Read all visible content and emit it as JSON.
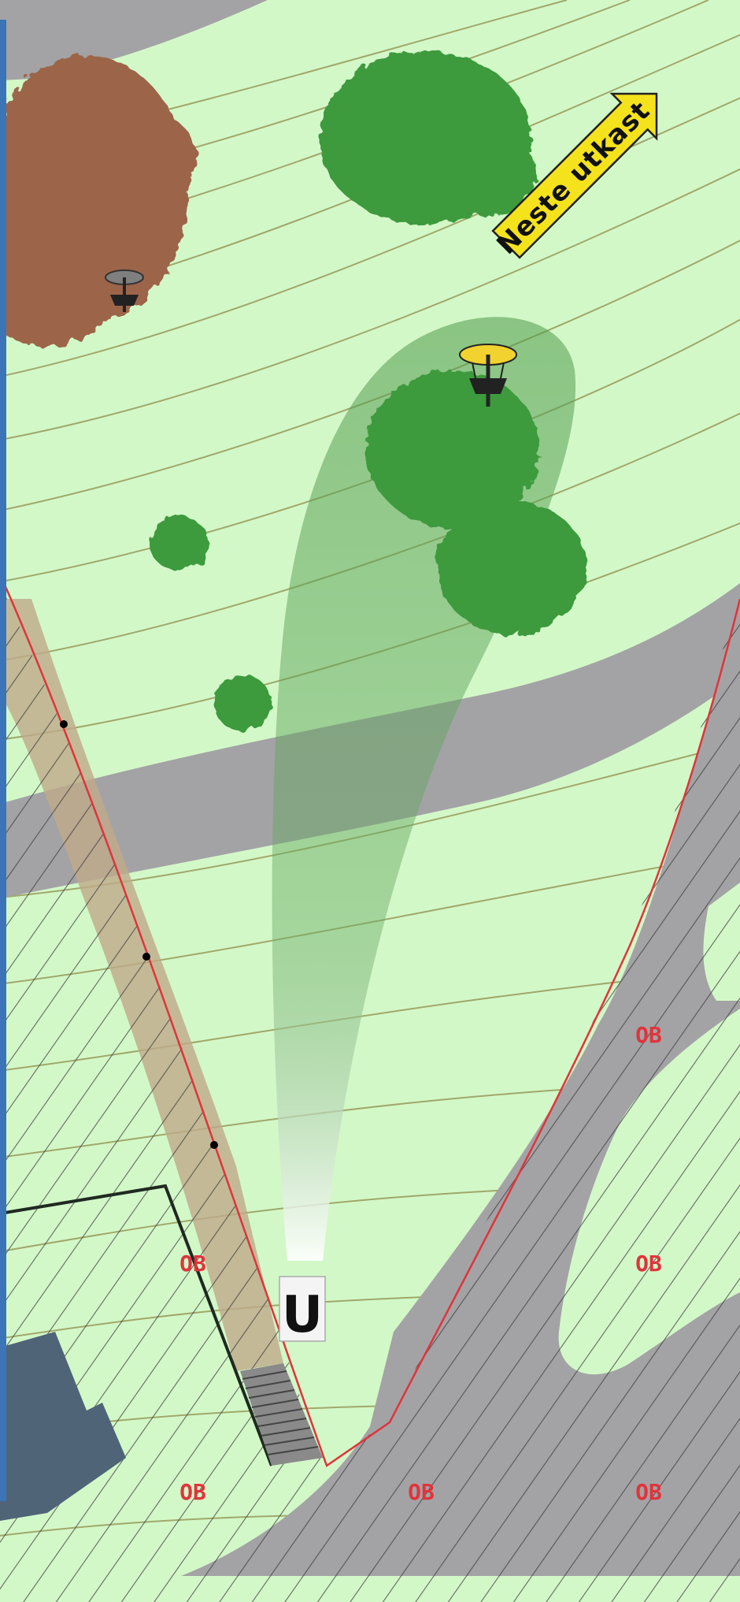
{
  "map": {
    "next_tee_sign": "Neste utkast",
    "tee_marker": "U",
    "ob_labels": [
      "OB",
      "OB",
      "OB",
      "OB",
      "OB",
      "OB"
    ],
    "colors": {
      "grass": "#d3f8c8",
      "path": "#a3a3a5",
      "tree": "#3d9a3c",
      "dead_tree": "#9c6548",
      "ob_line": "#e0343c",
      "fairway_corridor": "#5fa45b",
      "sign": "#f4e21d",
      "building": "#4f6477",
      "edge_bar": "#3c74b8",
      "basket_active": "#f2d22e",
      "basket_other": "#7f7f7f"
    },
    "icons": [
      "disc-golf-basket-icon",
      "next-tee-arrow-icon",
      "tee-pad-icon",
      "stairs-icon"
    ]
  }
}
